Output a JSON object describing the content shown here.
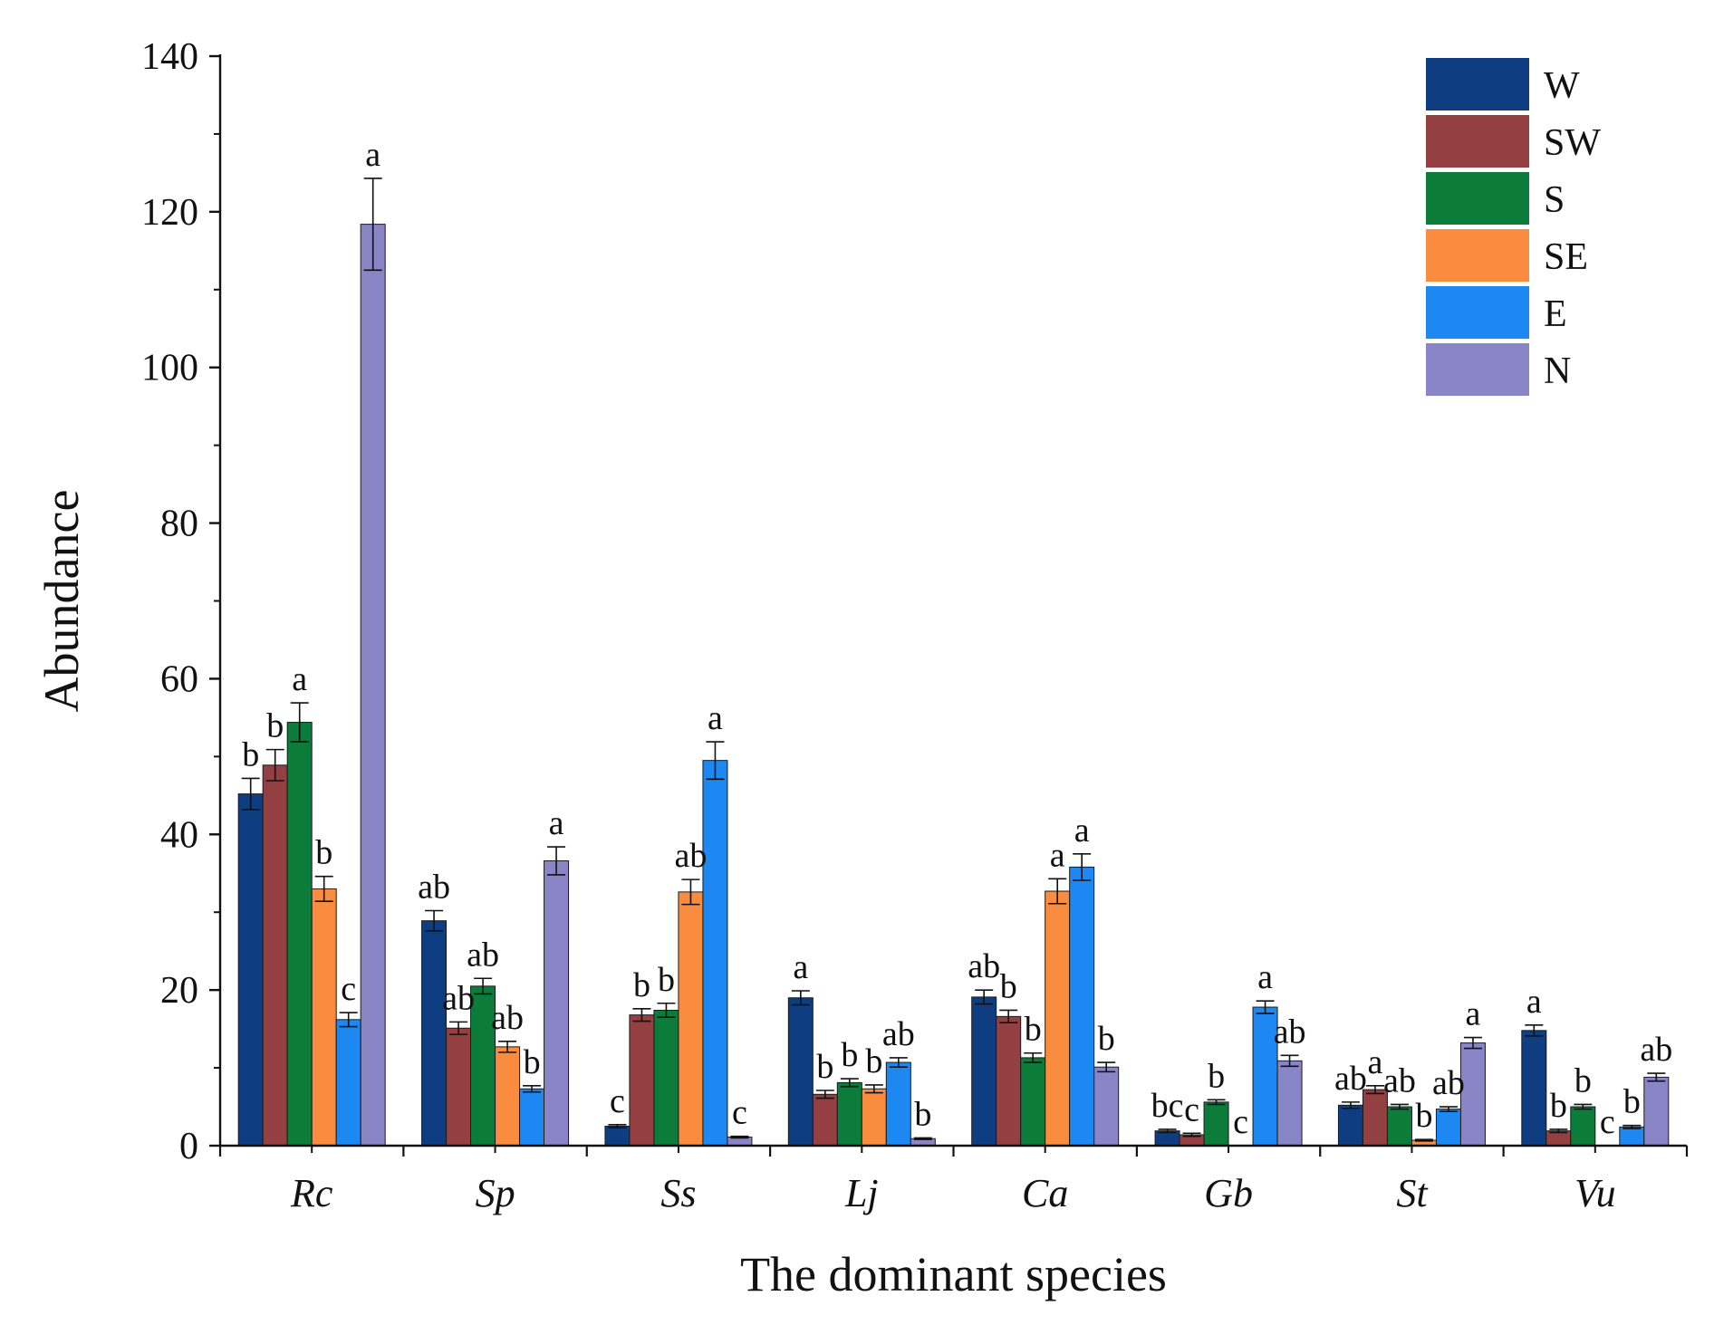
{
  "chart_data": {
    "type": "bar",
    "title": "",
    "xlabel": "The dominant species",
    "ylabel": "Abundance",
    "ylim": [
      0,
      140
    ],
    "yticks": [
      0,
      20,
      40,
      60,
      80,
      100,
      120,
      140
    ],
    "grid": false,
    "legend_position": "top-right",
    "categories": [
      "Rc",
      "Sp",
      "Ss",
      "Lj",
      "Ca",
      "Gb",
      "St",
      "Vu"
    ],
    "series": [
      {
        "name": "W",
        "color": "#0e3d82",
        "values": [
          45.2,
          28.9,
          2.5,
          19.0,
          19.1,
          1.9,
          5.2,
          14.8
        ],
        "errors": [
          2.0,
          1.3,
          0.2,
          0.9,
          0.9,
          0.2,
          0.4,
          0.7
        ],
        "letters": [
          "b",
          "ab",
          "c",
          "a",
          "ab",
          "bc",
          "ab",
          "a"
        ]
      },
      {
        "name": "SW",
        "color": "#943f42",
        "values": [
          48.9,
          15.1,
          16.8,
          6.6,
          16.6,
          1.4,
          7.2,
          1.9
        ],
        "errors": [
          2.0,
          0.8,
          0.8,
          0.5,
          0.8,
          0.2,
          0.5,
          0.2
        ],
        "letters": [
          "b",
          "ab",
          "b",
          "b",
          "b",
          "c",
          "a",
          "b"
        ]
      },
      {
        "name": "S",
        "color": "#0b7c3a",
        "values": [
          54.4,
          20.5,
          17.4,
          8.1,
          11.3,
          5.6,
          5.0,
          5.0
        ],
        "errors": [
          2.5,
          1.0,
          0.9,
          0.5,
          0.6,
          0.3,
          0.3,
          0.3
        ],
        "letters": [
          "a",
          "ab",
          "b",
          "b",
          "b",
          "b",
          "ab",
          "b"
        ]
      },
      {
        "name": "SE",
        "color": "#f98c3f",
        "values": [
          33.0,
          12.7,
          32.6,
          7.3,
          32.7,
          0,
          0.7,
          0
        ],
        "errors": [
          1.6,
          0.7,
          1.6,
          0.5,
          1.6,
          0,
          0.1,
          0
        ],
        "letters": [
          "b",
          "ab",
          "ab",
          "b",
          "a",
          "c",
          "b",
          "c"
        ]
      },
      {
        "name": "E",
        "color": "#1d88f1",
        "values": [
          16.2,
          7.3,
          49.5,
          10.7,
          35.8,
          17.8,
          4.7,
          2.4
        ],
        "errors": [
          0.9,
          0.4,
          2.4,
          0.6,
          1.7,
          0.8,
          0.3,
          0.2
        ],
        "letters": [
          "c",
          "b",
          "a",
          "ab",
          "a",
          "a",
          "ab",
          "b"
        ]
      },
      {
        "name": "N",
        "color": "#8985c7",
        "values": [
          118.4,
          36.6,
          1.1,
          0.9,
          10.1,
          10.9,
          13.2,
          8.8
        ],
        "errors": [
          5.9,
          1.8,
          0.1,
          0.1,
          0.6,
          0.7,
          0.7,
          0.5
        ],
        "letters": [
          "a",
          "a",
          "c",
          "b",
          "b",
          "ab",
          "a",
          "ab"
        ]
      }
    ]
  }
}
